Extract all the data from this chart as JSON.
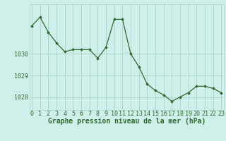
{
  "x": [
    0,
    1,
    2,
    3,
    4,
    5,
    6,
    7,
    8,
    9,
    10,
    11,
    12,
    13,
    14,
    15,
    16,
    17,
    18,
    19,
    20,
    21,
    22,
    23
  ],
  "y": [
    1031.3,
    1031.7,
    1031.0,
    1030.5,
    1030.1,
    1030.2,
    1030.2,
    1030.2,
    1029.8,
    1030.3,
    1031.6,
    1031.6,
    1030.0,
    1029.4,
    1028.6,
    1028.3,
    1028.1,
    1027.8,
    1028.0,
    1028.2,
    1028.5,
    1028.5,
    1028.4,
    1028.2
  ],
  "line_color": "#2d6a2d",
  "marker_color": "#2d6a2d",
  "bg_color": "#cff0ea",
  "grid_color": "#a8d4cc",
  "axis_color": "#2d6a2d",
  "xlabel": "Graphe pression niveau de la mer (hPa)",
  "xlabel_fontsize": 7,
  "tick_fontsize": 6,
  "ylim": [
    1027.4,
    1032.3
  ],
  "yticks": [
    1028,
    1029,
    1030
  ],
  "xticks": [
    0,
    1,
    2,
    3,
    4,
    5,
    6,
    7,
    8,
    9,
    10,
    11,
    12,
    13,
    14,
    15,
    16,
    17,
    18,
    19,
    20,
    21,
    22,
    23
  ],
  "xtick_labels": [
    "0",
    "1",
    "2",
    "3",
    "4",
    "5",
    "6",
    "7",
    "8",
    "9",
    "10",
    "11",
    "12",
    "13",
    "14",
    "15",
    "16",
    "17",
    "18",
    "19",
    "20",
    "21",
    "22",
    "23"
  ]
}
